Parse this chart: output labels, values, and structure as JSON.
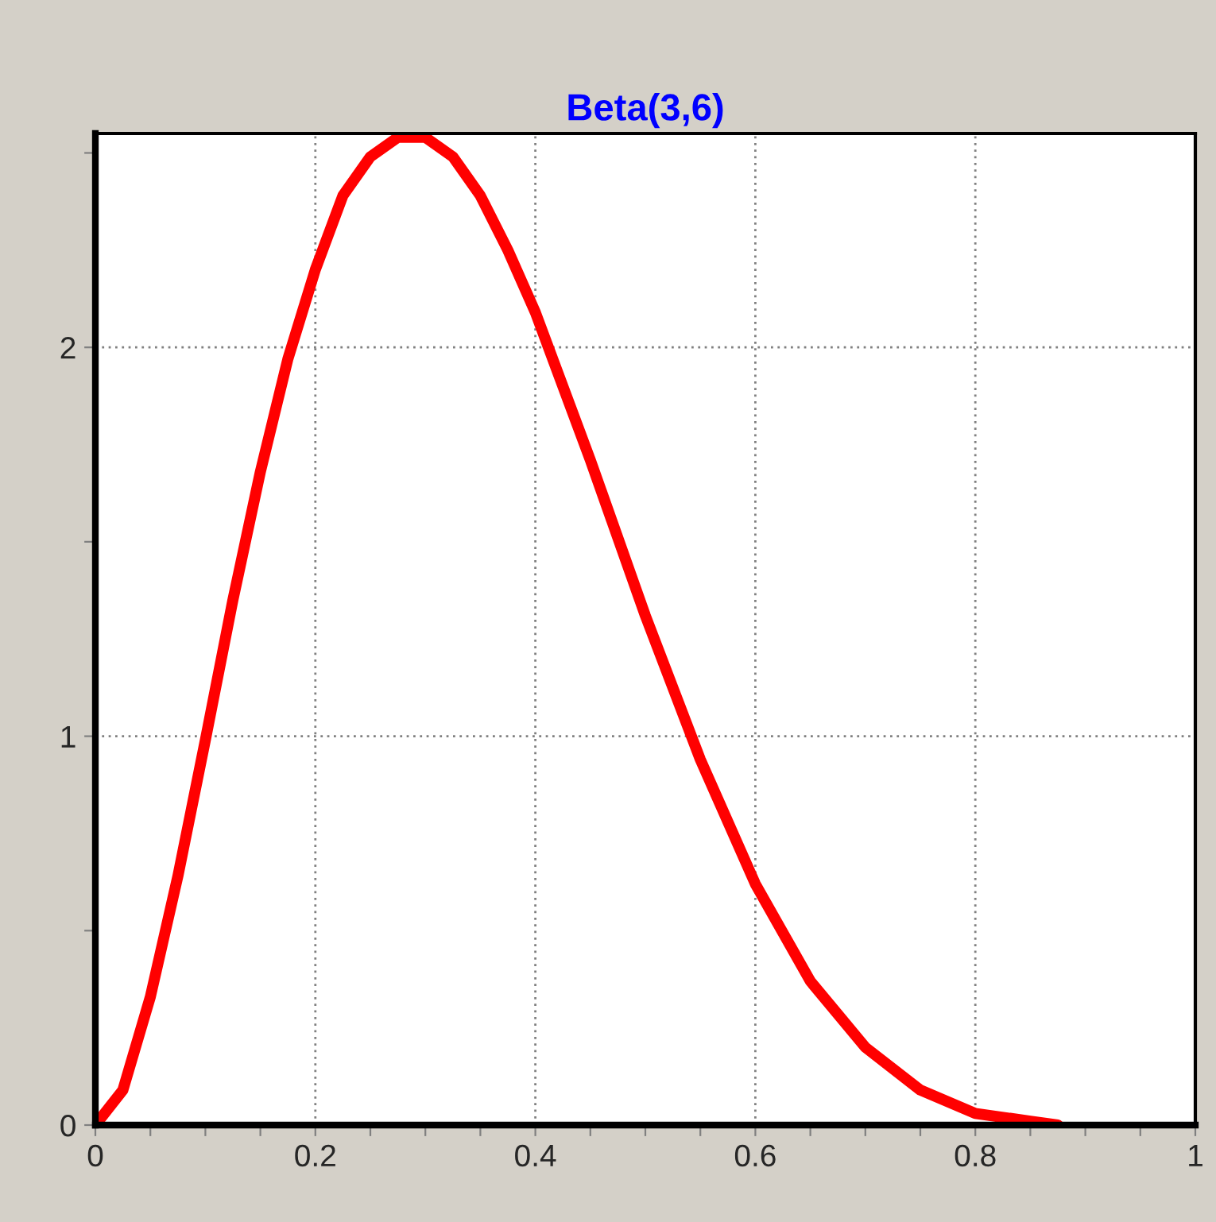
{
  "chart_data": {
    "type": "line",
    "title": "Beta(3,6)",
    "x": [
      0,
      0.025,
      0.05,
      0.075,
      0.1,
      0.125,
      0.15,
      0.175,
      0.2,
      0.225,
      0.25,
      0.275,
      0.3,
      0.325,
      0.35,
      0.375,
      0.4,
      0.45,
      0.5,
      0.55,
      0.6,
      0.65,
      0.7,
      0.75,
      0.8,
      0.85,
      0.875
    ],
    "series": [
      {
        "color": "#ff0000",
        "values": [
          0,
          0.09,
          0.33,
          0.64,
          0.99,
          1.35,
          1.68,
          1.97,
          2.2,
          2.39,
          2.49,
          2.54,
          2.54,
          2.49,
          2.39,
          2.25,
          2.09,
          1.71,
          1.31,
          0.94,
          0.62,
          0.37,
          0.2,
          0.09,
          0.03,
          0.01,
          0
        ]
      }
    ],
    "xlim": [
      0,
      1
    ],
    "ylim": [
      0,
      2.55
    ],
    "xticks": [
      0,
      0.2,
      0.4,
      0.6,
      0.8,
      1,
      {
        "value": 0.05,
        "label": null
      },
      {
        "value": 0.1,
        "label": null
      },
      {
        "value": 0.15,
        "label": null
      },
      {
        "value": 0.25,
        "label": null
      },
      {
        "value": 0.3,
        "label": null
      },
      {
        "value": 0.35,
        "label": null
      },
      {
        "value": 0.45,
        "label": null
      },
      {
        "value": 0.5,
        "label": null
      },
      {
        "value": 0.55,
        "label": null
      },
      {
        "value": 0.65,
        "label": null
      },
      {
        "value": 0.7,
        "label": null
      },
      {
        "value": 0.75,
        "label": null
      },
      {
        "value": 0.85,
        "label": null
      },
      {
        "value": 0.9,
        "label": null
      },
      {
        "value": 0.95,
        "label": null
      }
    ],
    "yticks": [
      0,
      1,
      2,
      {
        "value": 0.5,
        "label": null
      },
      {
        "value": 1.5,
        "label": null
      },
      {
        "value": 2.5,
        "label": null
      }
    ],
    "grid": true,
    "marker": "none",
    "line_style": "solid",
    "legend": false
  }
}
